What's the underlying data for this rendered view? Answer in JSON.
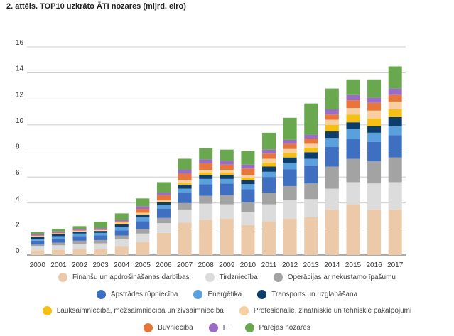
{
  "title": "2. attēls. TOP10 uzkrāto ĀTI nozares (mljrd. eiro)",
  "chart_data": {
    "type": "bar",
    "stacked": true,
    "categories": [
      "2000",
      "2001",
      "2002",
      "2003",
      "2004",
      "2005",
      "2006",
      "2007",
      "2008",
      "2009",
      "2010",
      "2011",
      "2012",
      "2013",
      "2014",
      "2015",
      "2016",
      "2017"
    ],
    "ylim": [
      0,
      16
    ],
    "yticks": [
      0,
      2,
      4,
      6,
      8,
      10,
      12,
      14,
      16
    ],
    "grid": true,
    "legend_position": "bottom",
    "series": [
      {
        "name": "Finanšu un apdrošināšanas darbības",
        "color": "#ecc9a8",
        "values": [
          0.35,
          0.4,
          0.45,
          0.45,
          0.65,
          1.0,
          1.7,
          2.5,
          2.7,
          2.8,
          2.3,
          2.6,
          2.8,
          2.9,
          3.5,
          3.9,
          3.5,
          3.5
        ]
      },
      {
        "name": "Tirdzniecība",
        "color": "#dcdcdc",
        "values": [
          0.3,
          0.35,
          0.4,
          0.45,
          0.55,
          0.65,
          0.75,
          1.0,
          1.25,
          1.1,
          1.0,
          1.3,
          1.4,
          1.4,
          1.6,
          1.7,
          2.0,
          2.1
        ]
      },
      {
        "name": "Operācijas ar nekustamo īpašumu",
        "color": "#a3a3a3",
        "values": [
          0.15,
          0.2,
          0.25,
          0.25,
          0.3,
          0.35,
          0.4,
          0.5,
          0.6,
          0.7,
          0.75,
          0.9,
          1.1,
          1.2,
          1.7,
          1.8,
          1.7,
          1.9
        ]
      },
      {
        "name": "Apstrādes rūpniecība",
        "color": "#3f6fc0",
        "values": [
          0.3,
          0.3,
          0.35,
          0.35,
          0.4,
          0.6,
          0.7,
          0.8,
          0.9,
          0.9,
          1.0,
          1.2,
          1.3,
          1.4,
          1.5,
          1.5,
          1.5,
          1.7
        ]
      },
      {
        "name": "Enerģētika",
        "color": "#5aa0dc",
        "values": [
          0.15,
          0.2,
          0.2,
          0.2,
          0.25,
          0.3,
          0.3,
          0.3,
          0.4,
          0.35,
          0.4,
          0.4,
          0.5,
          0.5,
          0.7,
          0.8,
          0.7,
          0.7
        ]
      },
      {
        "name": "Transports un uzglabāšana",
        "color": "#0c3d6b",
        "values": [
          0.15,
          0.15,
          0.15,
          0.15,
          0.2,
          0.2,
          0.2,
          0.3,
          0.3,
          0.3,
          0.3,
          0.4,
          0.4,
          0.5,
          0.5,
          0.5,
          0.5,
          0.7
        ]
      },
      {
        "name": "Lauksaimniecība, mežsaimniecība un zivsaimniecība",
        "color": "#f5c013",
        "values": [
          0.02,
          0.02,
          0.02,
          0.02,
          0.05,
          0.05,
          0.05,
          0.15,
          0.2,
          0.2,
          0.2,
          0.3,
          0.35,
          0.35,
          0.5,
          0.6,
          0.6,
          0.6
        ]
      },
      {
        "name": "Profesionālie, zinātniskie un tehniskie pakalpojumi",
        "color": "#f8cfa0",
        "values": [
          0.05,
          0.05,
          0.05,
          0.05,
          0.1,
          0.1,
          0.1,
          0.2,
          0.2,
          0.2,
          0.2,
          0.3,
          0.3,
          0.3,
          0.4,
          0.5,
          0.6,
          0.6
        ]
      },
      {
        "name": "Būvniecība",
        "color": "#e8763a",
        "values": [
          0.05,
          0.05,
          0.05,
          0.05,
          0.1,
          0.3,
          0.4,
          0.5,
          0.5,
          0.4,
          0.5,
          0.4,
          0.4,
          0.4,
          0.4,
          0.6,
          0.6,
          0.5
        ]
      },
      {
        "name": "IT",
        "color": "#9b6cc6",
        "values": [
          0.1,
          0.1,
          0.1,
          0.1,
          0.1,
          0.2,
          0.2,
          0.3,
          0.3,
          0.3,
          0.3,
          0.3,
          0.3,
          0.3,
          0.4,
          0.4,
          0.4,
          0.5
        ]
      },
      {
        "name": "Pārējās nozares",
        "color": "#6aa84f",
        "values": [
          0.15,
          0.2,
          0.2,
          0.5,
          0.5,
          0.6,
          0.8,
          0.85,
          0.85,
          0.85,
          1.05,
          1.3,
          1.7,
          2.4,
          1.6,
          1.2,
          1.4,
          1.7
        ]
      }
    ]
  }
}
